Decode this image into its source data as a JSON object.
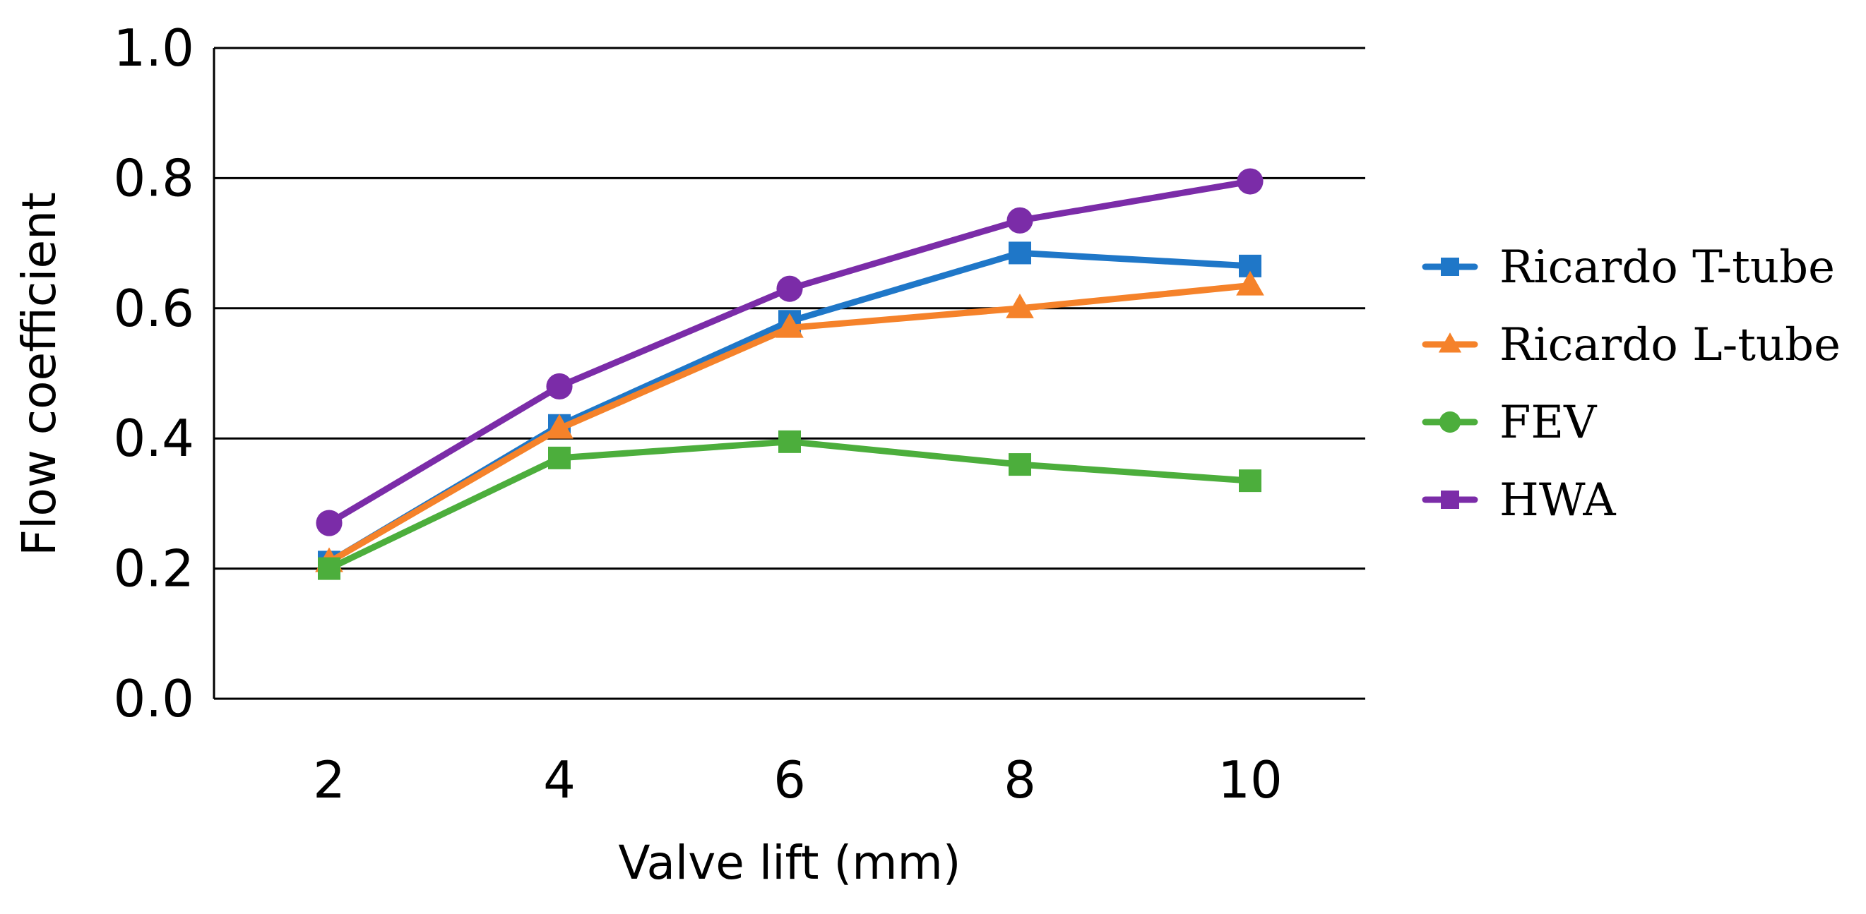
{
  "chart_data": {
    "type": "line",
    "title": "",
    "xlabel": "Valve lift (mm)",
    "ylabel": "Flow coefficient",
    "x": [
      2,
      4,
      6,
      8,
      10
    ],
    "x_tick_labels": [
      "2",
      "4",
      "6",
      "8",
      "10"
    ],
    "ylim": [
      0.0,
      1.0
    ],
    "y_ticks": [
      0.0,
      0.2,
      0.4,
      0.6,
      0.8,
      1.0
    ],
    "y_tick_labels": [
      "0.0",
      "0.2",
      "0.4",
      "0.6",
      "0.8",
      "1.0"
    ],
    "grid": true,
    "legend_position": "right",
    "series": [
      {
        "name": "Ricardo T-tube",
        "color": "#1f77c8",
        "marker": "square",
        "values": [
          0.21,
          0.42,
          0.58,
          0.685,
          0.665
        ]
      },
      {
        "name": "Ricardo L-tube",
        "color": "#f5822a",
        "marker": "triangle",
        "values": [
          0.21,
          0.415,
          0.57,
          0.6,
          0.635
        ]
      },
      {
        "name": "FEV",
        "color": "#4cae3c",
        "marker": "square",
        "legend_marker": "circle",
        "values": [
          0.2,
          0.37,
          0.395,
          0.36,
          0.335
        ]
      },
      {
        "name": "HWA",
        "color": "#7b2ca8",
        "marker": "circle",
        "legend_marker": "square",
        "values": [
          0.27,
          0.48,
          0.63,
          0.735,
          0.795
        ]
      }
    ]
  }
}
